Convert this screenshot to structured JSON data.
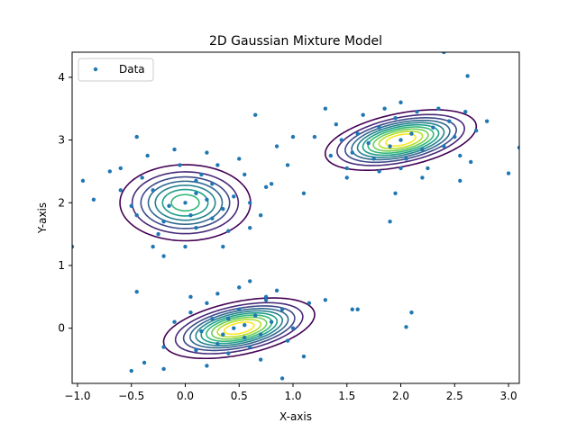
{
  "chart_data": {
    "type": "scatter",
    "title": "2D Gaussian Mixture Model",
    "xlabel": "X-axis",
    "ylabel": "Y-axis",
    "xlim": [
      -1.05,
      3.1
    ],
    "ylim": [
      -0.88,
      4.4
    ],
    "xticks": [
      -1.0,
      -0.5,
      0.0,
      0.5,
      1.0,
      1.5,
      2.0,
      2.5,
      3.0
    ],
    "xtick_labels": [
      "−1.0",
      "−0.5",
      "0.0",
      "0.5",
      "1.0",
      "1.5",
      "2.0",
      "2.5",
      "3.0"
    ],
    "yticks": [
      0,
      1,
      2,
      3,
      4
    ],
    "ytick_labels": [
      "0",
      "1",
      "2",
      "3",
      "4"
    ],
    "legend": {
      "position": "upper-left",
      "entries": [
        {
          "label": "Data",
          "color": "#1f77b4"
        }
      ]
    },
    "grid": false,
    "series": [
      {
        "name": "Data",
        "color": "#1f77b4",
        "points": [
          [
            0.0,
            2.0
          ],
          [
            0.1,
            2.15
          ],
          [
            0.2,
            2.05
          ],
          [
            -0.15,
            1.95
          ],
          [
            0.05,
            1.8
          ],
          [
            0.25,
            2.3
          ],
          [
            -0.3,
            2.2
          ],
          [
            0.35,
            1.9
          ],
          [
            -0.2,
            1.7
          ],
          [
            0.15,
            2.45
          ],
          [
            -0.05,
            2.6
          ],
          [
            0.3,
            2.6
          ],
          [
            -0.4,
            2.4
          ],
          [
            -0.5,
            1.95
          ],
          [
            0.45,
            2.1
          ],
          [
            0.1,
            1.6
          ],
          [
            -0.25,
            1.5
          ],
          [
            0.4,
            1.55
          ],
          [
            -0.45,
            1.8
          ],
          [
            0.55,
            2.45
          ],
          [
            0.6,
            2.0
          ],
          [
            -0.6,
            2.2
          ],
          [
            0.2,
            2.8
          ],
          [
            -0.1,
            2.85
          ],
          [
            0.5,
            2.7
          ],
          [
            -0.35,
            2.75
          ],
          [
            0.7,
            1.8
          ],
          [
            -0.7,
            2.5
          ],
          [
            0.0,
            1.3
          ],
          [
            -0.2,
            1.15
          ],
          [
            0.35,
            1.3
          ],
          [
            0.75,
            2.25
          ],
          [
            -0.85,
            2.05
          ],
          [
            -0.95,
            2.35
          ],
          [
            -0.6,
            2.55
          ],
          [
            -0.45,
            3.05
          ],
          [
            0.6,
            1.6
          ],
          [
            -0.3,
            1.3
          ],
          [
            0.1,
            2.35
          ],
          [
            0.25,
            1.75
          ],
          [
            0.45,
            0.0
          ],
          [
            0.55,
            0.05
          ],
          [
            0.35,
            -0.1
          ],
          [
            0.65,
            0.2
          ],
          [
            0.25,
            0.15
          ],
          [
            0.5,
            0.3
          ],
          [
            0.7,
            -0.1
          ],
          [
            0.3,
            -0.25
          ],
          [
            0.6,
            -0.3
          ],
          [
            0.8,
            0.1
          ],
          [
            0.15,
            -0.05
          ],
          [
            0.9,
            0.3
          ],
          [
            0.2,
            0.4
          ],
          [
            0.75,
            0.45
          ],
          [
            0.4,
            -0.4
          ],
          [
            1.0,
            0.0
          ],
          [
            0.05,
            0.25
          ],
          [
            0.95,
            -0.2
          ],
          [
            0.1,
            -0.35
          ],
          [
            0.85,
            0.6
          ],
          [
            0.5,
            0.65
          ],
          [
            0.3,
            0.55
          ],
          [
            1.15,
            0.4
          ],
          [
            -0.1,
            0.1
          ],
          [
            0.7,
            -0.5
          ],
          [
            -0.2,
            -0.3
          ],
          [
            1.1,
            -0.45
          ],
          [
            0.2,
            -0.6
          ],
          [
            0.6,
            0.75
          ],
          [
            1.3,
            0.45
          ],
          [
            -0.45,
            0.58
          ],
          [
            -0.5,
            -0.68
          ],
          [
            -0.38,
            -0.55
          ],
          [
            -0.2,
            -0.65
          ],
          [
            0.9,
            -0.8
          ],
          [
            1.6,
            0.3
          ],
          [
            0.75,
            0.5
          ],
          [
            0.4,
            0.15
          ],
          [
            0.55,
            -0.15
          ],
          [
            0.05,
            0.5
          ],
          [
            2.0,
            3.0
          ],
          [
            1.9,
            2.9
          ],
          [
            2.1,
            3.1
          ],
          [
            1.8,
            3.2
          ],
          [
            2.2,
            2.85
          ],
          [
            1.95,
            3.35
          ],
          [
            2.05,
            2.7
          ],
          [
            1.7,
            2.95
          ],
          [
            2.3,
            3.2
          ],
          [
            2.15,
            3.45
          ],
          [
            1.75,
            2.7
          ],
          [
            2.4,
            2.9
          ],
          [
            1.6,
            3.1
          ],
          [
            2.25,
            2.55
          ],
          [
            1.85,
            3.5
          ],
          [
            2.5,
            3.05
          ],
          [
            1.55,
            2.8
          ],
          [
            2.35,
            3.5
          ],
          [
            1.65,
            3.4
          ],
          [
            2.0,
            2.55
          ],
          [
            2.55,
            2.75
          ],
          [
            1.45,
            3.0
          ],
          [
            2.45,
            3.3
          ],
          [
            1.8,
            2.5
          ],
          [
            2.6,
            3.45
          ],
          [
            1.4,
            3.25
          ],
          [
            2.2,
            2.4
          ],
          [
            1.5,
            2.55
          ],
          [
            2.7,
            3.15
          ],
          [
            1.35,
            2.75
          ],
          [
            2.0,
            3.6
          ],
          [
            2.65,
            2.65
          ],
          [
            1.3,
            3.5
          ],
          [
            2.8,
            3.3
          ],
          [
            1.95,
            2.15
          ],
          [
            2.4,
            4.4
          ],
          [
            2.62,
            4.02
          ],
          [
            1.2,
            3.05
          ],
          [
            2.55,
            2.35
          ],
          [
            3.1,
            2.88
          ],
          [
            3.0,
            2.47
          ],
          [
            1.0,
            3.05
          ],
          [
            0.65,
            3.4
          ],
          [
            0.85,
            2.9
          ],
          [
            1.1,
            2.15
          ],
          [
            0.8,
            2.3
          ],
          [
            0.95,
            2.6
          ],
          [
            1.5,
            2.4
          ],
          [
            2.1,
            0.25
          ],
          [
            1.9,
            1.7
          ],
          [
            2.05,
            0.02
          ],
          [
            1.55,
            0.3
          ],
          [
            -1.05,
            1.3
          ]
        ]
      }
    ],
    "contours": {
      "levels": 10,
      "colormap": "viridis",
      "components": [
        {
          "mean": [
            0.0,
            2.0
          ],
          "sigma": [
            0.3,
            0.3
          ],
          "rho": 0.0
        },
        {
          "mean": [
            0.5,
            0.0
          ],
          "sigma": [
            0.32,
            0.22
          ],
          "rho": 0.45
        },
        {
          "mean": [
            2.0,
            3.0
          ],
          "sigma": [
            0.32,
            0.22
          ],
          "rho": 0.45
        }
      ]
    }
  }
}
